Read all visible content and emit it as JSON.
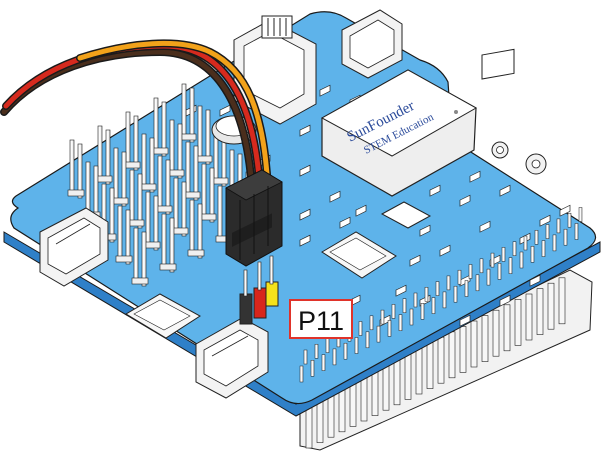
{
  "diagram": {
    "pin_label": "P11",
    "module": {
      "brand": "SunFounder",
      "line2": "STEM Education"
    },
    "wire_colors": {
      "signal": "#f2a21a",
      "power": "#d62a1e",
      "ground": "#4a2e1c",
      "header_signal": "#f5e21a",
      "header_power": "#d8261c",
      "header_ground": "#333333"
    },
    "board_color": "#5eb3ea",
    "board_edge_color": "#2f80c8",
    "label_border_color": "#e0332a"
  }
}
